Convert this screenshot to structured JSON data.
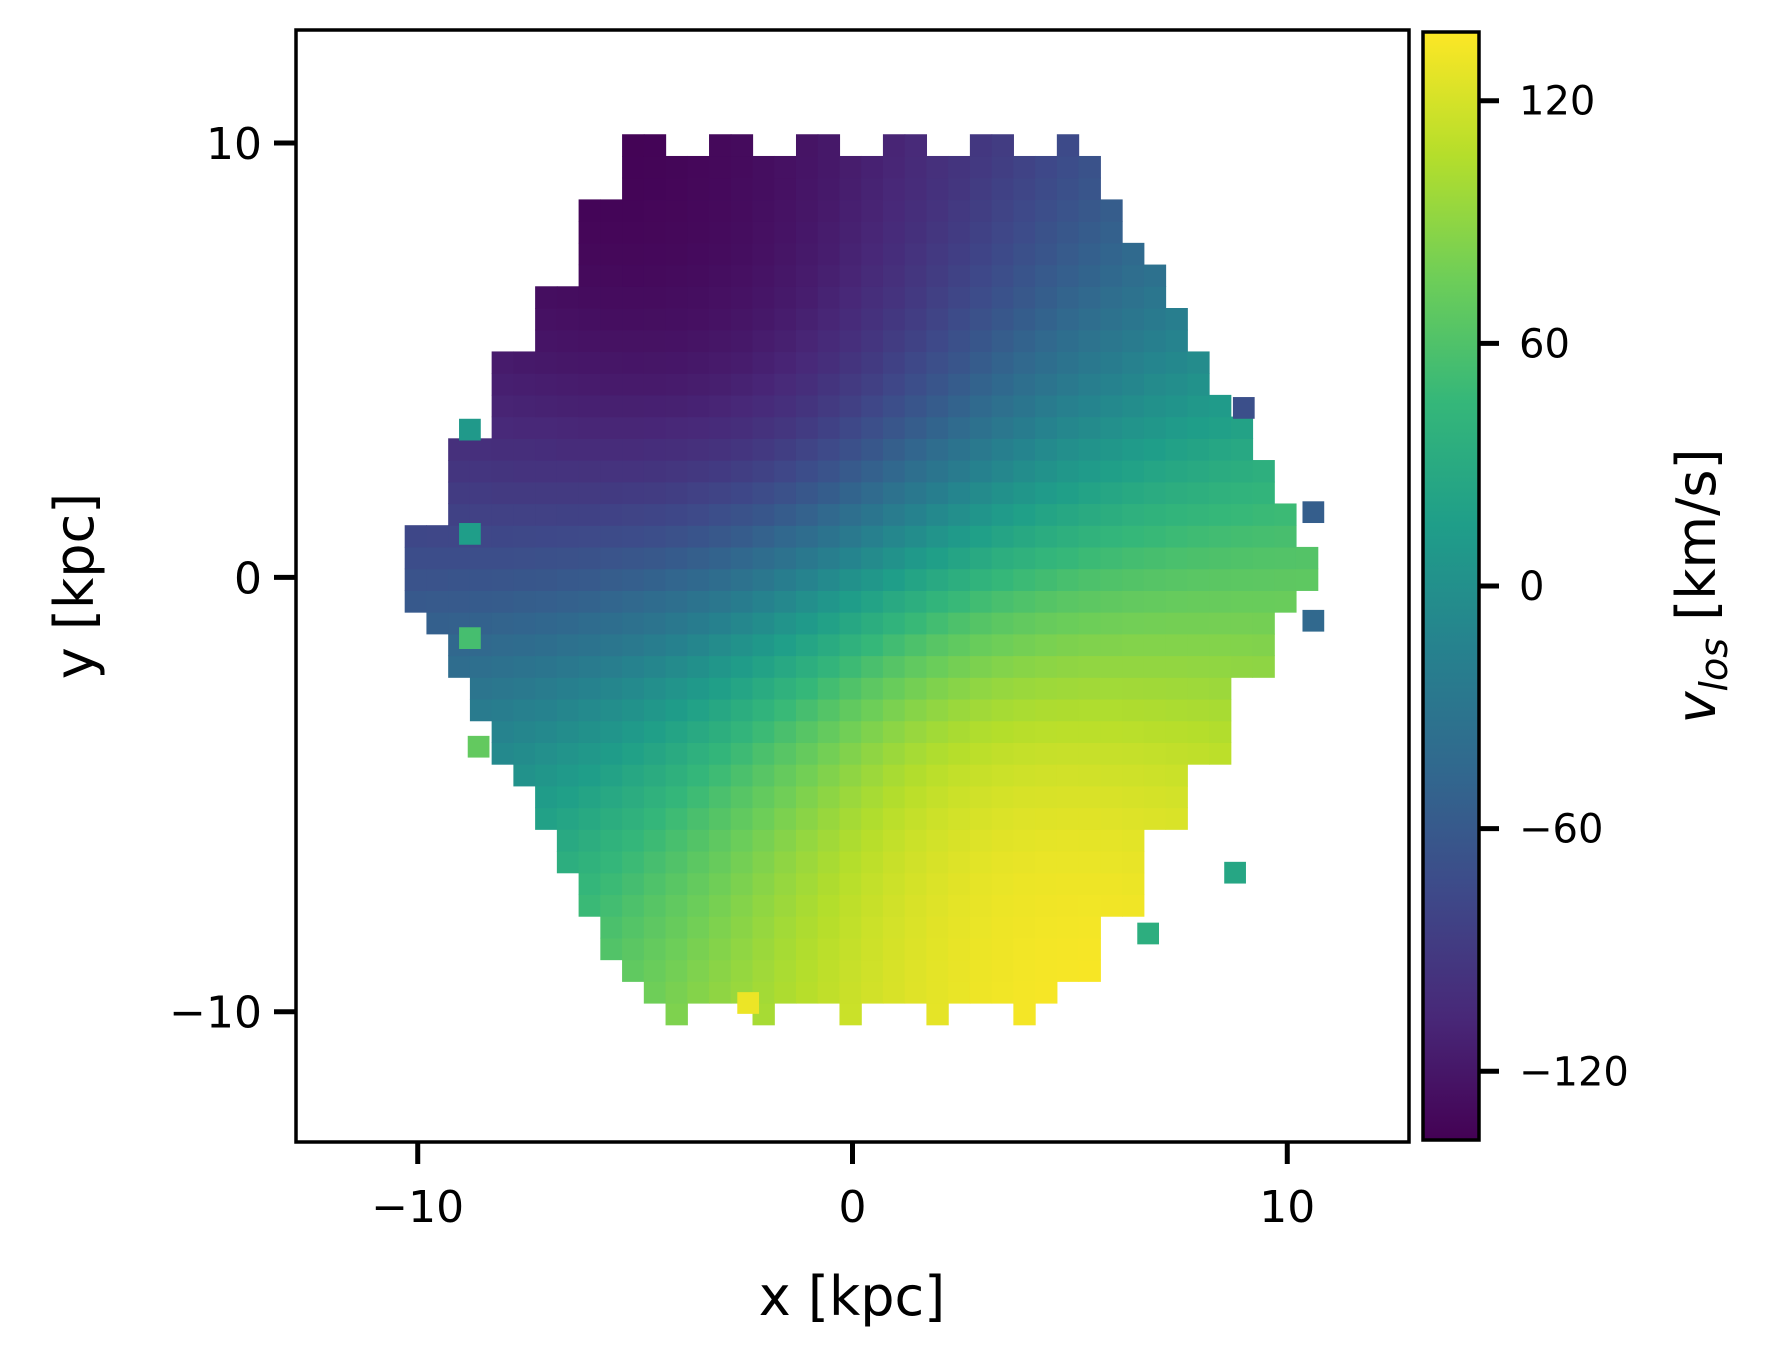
{
  "chart_data": {
    "type": "heatmap",
    "title": "",
    "xlabel": "x [kpc]",
    "ylabel": "y [kpc]",
    "colorbar_label": "v_los [km/s]",
    "colorbar_label_main": "v",
    "colorbar_label_sub": "los",
    "colorbar_label_unit": " [km/s]",
    "xlim": [
      -12.8,
      12.8
    ],
    "ylim": [
      -13,
      12.6
    ],
    "xticks": [
      -10,
      0,
      10
    ],
    "yticks": [
      -10,
      0,
      10
    ],
    "xtick_labels": [
      "−10",
      "0",
      "10"
    ],
    "ytick_labels": [
      "−10",
      "0",
      "10"
    ],
    "colorbar_range": [
      -137,
      137
    ],
    "colorbar_ticks": [
      -120,
      -60,
      0,
      60,
      120
    ],
    "colorbar_tick_labels": [
      "−120",
      "−60",
      "0",
      "60",
      "120"
    ],
    "colormap": "viridis",
    "grid": false,
    "cell_size_kpc": 0.5,
    "field_model": {
      "description": "rotating disk line-of-sight velocity, sampled on 0.5 kpc cells within a hexagonal footprint",
      "v_max_kms": 137,
      "turnover_radius_kpc": 4.5,
      "kinematic_axis_angle_deg": -60,
      "footprint_radius_kpc": 10.8
    },
    "extra_cells": [
      {
        "x": -8.8,
        "y": 3.4,
        "v": 10
      },
      {
        "x": -8.8,
        "y": 1.0,
        "v": 15
      },
      {
        "x": -8.8,
        "y": -1.4,
        "v": 55
      },
      {
        "x": -8.6,
        "y": -3.9,
        "v": 70
      },
      {
        "x": 10.6,
        "y": 1.5,
        "v": -55
      },
      {
        "x": 10.6,
        "y": -1.0,
        "v": -45
      },
      {
        "x": 9.0,
        "y": 3.9,
        "v": -70
      },
      {
        "x": 8.8,
        "y": -6.8,
        "v": 25
      },
      {
        "x": 6.8,
        "y": -8.2,
        "v": 35
      },
      {
        "x": -2.4,
        "y": -9.8,
        "v": 130
      }
    ],
    "color_stops": [
      "#440154",
      "#482878",
      "#3e4989",
      "#31688e",
      "#26828e",
      "#1f9e89",
      "#35b779",
      "#6ece58",
      "#b5de2b",
      "#fde725"
    ]
  }
}
